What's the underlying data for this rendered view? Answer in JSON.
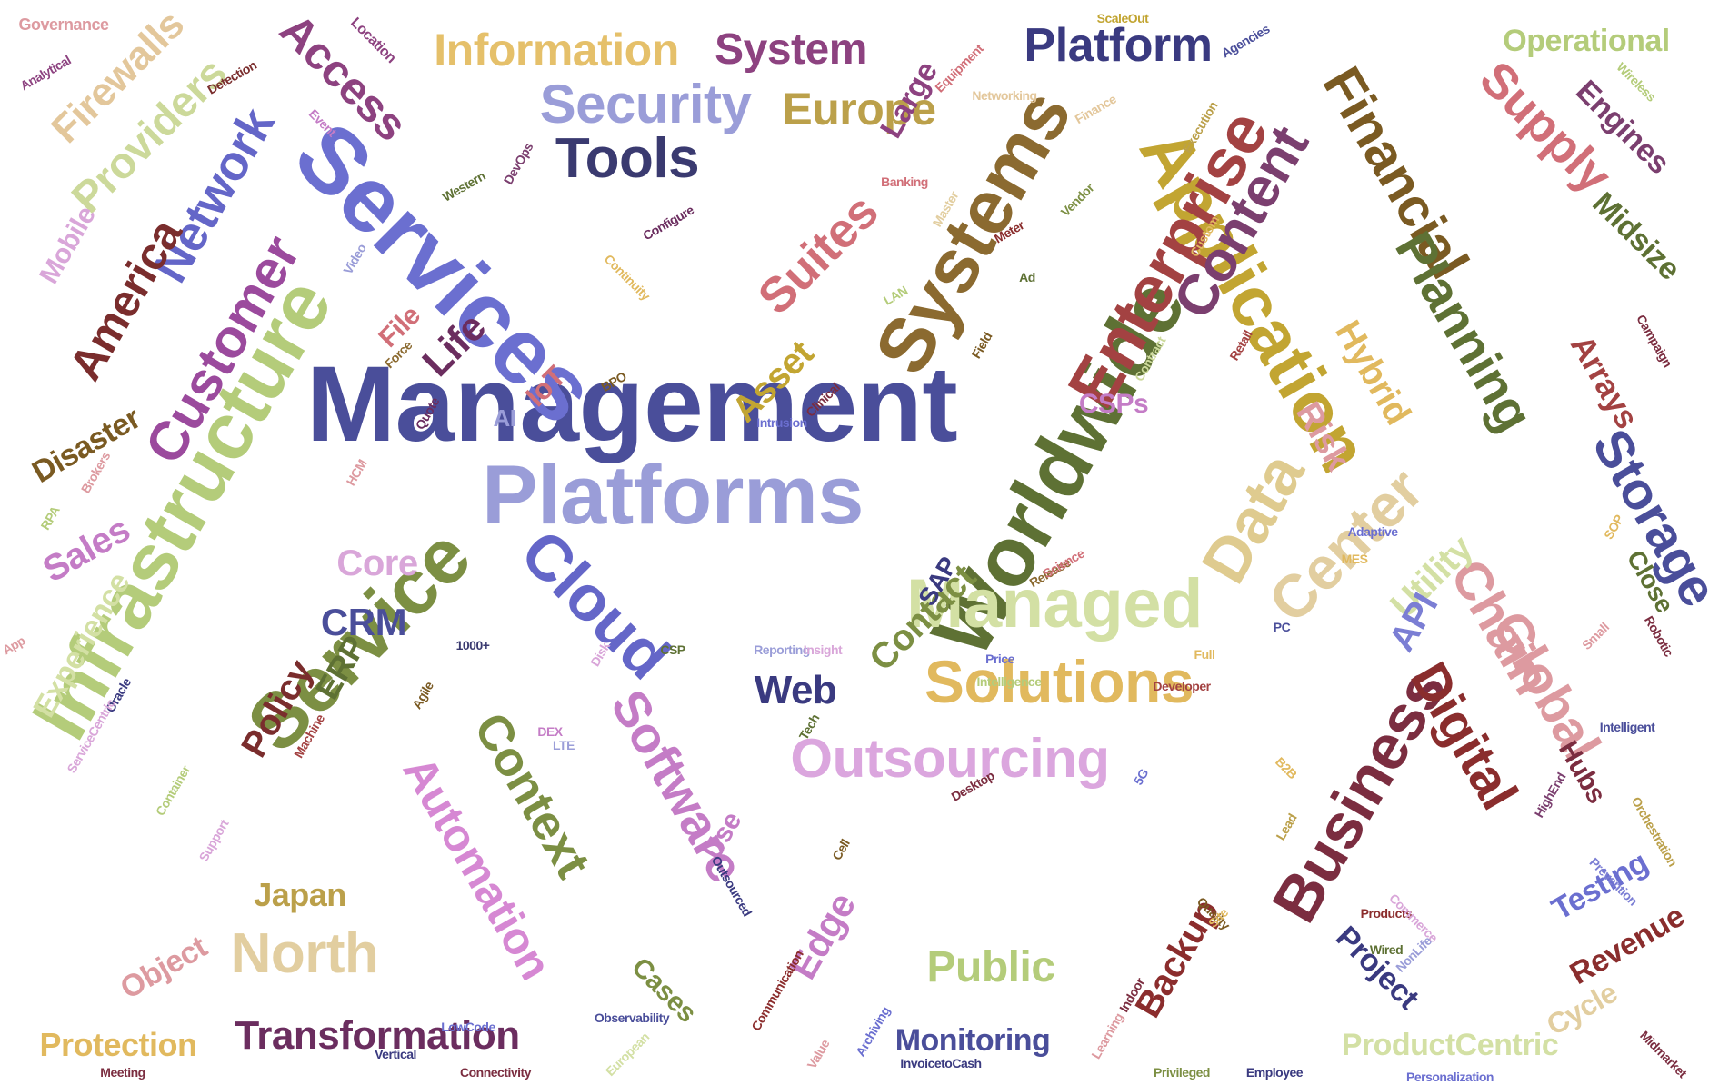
{
  "words": [
    {
      "text": "Management",
      "color": "#4a4e9a"
    },
    {
      "text": "Services",
      "color": "#6b6fd0"
    },
    {
      "text": "Platforms",
      "color": "#9a9dd8"
    },
    {
      "text": "Infrastructure",
      "color": "#b4cc7a"
    },
    {
      "text": "Worldwide",
      "color": "#5e7134"
    },
    {
      "text": "Service",
      "color": "#7c8f43"
    },
    {
      "text": "Cloud",
      "color": "#6466c8"
    },
    {
      "text": "Managed",
      "color": "#d3e0a4"
    },
    {
      "text": "Solutions",
      "color": "#e1b95e"
    },
    {
      "text": "Outsourcing",
      "color": "#dba6de"
    },
    {
      "text": "Systems",
      "color": "#8b6a30"
    },
    {
      "text": "Application",
      "color": "#c2a532"
    },
    {
      "text": "Enterprise",
      "color": "#a34242"
    },
    {
      "text": "Data",
      "color": "#dfcb8f"
    },
    {
      "text": "Center",
      "color": "#e2cea0"
    },
    {
      "text": "Customer",
      "color": "#9b4a9d"
    },
    {
      "text": "Network",
      "color": "#6466c8"
    },
    {
      "text": "Security",
      "color": "#9a9dd8"
    },
    {
      "text": "Tools",
      "color": "#3a3a70"
    },
    {
      "text": "Content",
      "color": "#7b3f6f"
    },
    {
      "text": "Financial",
      "color": "#7a5a22"
    },
    {
      "text": "Planning",
      "color": "#5e7134"
    },
    {
      "text": "Storage",
      "color": "#4a4e9a"
    },
    {
      "text": "Business",
      "color": "#7b2d40"
    },
    {
      "text": "Chain",
      "color": "#dd9aa0"
    },
    {
      "text": "Global",
      "color": "#dd9aa0"
    },
    {
      "text": "Digital",
      "color": "#8a2d2d"
    },
    {
      "text": "Software",
      "color": "#c47cc6"
    },
    {
      "text": "Context",
      "color": "#7c8f43"
    },
    {
      "text": "Automation",
      "color": "#d688d3"
    },
    {
      "text": "Platform",
      "color": "#3a3a80"
    },
    {
      "text": "Supply",
      "color": "#d16f78"
    },
    {
      "text": "Suites",
      "color": "#d16f78"
    },
    {
      "text": "Europe",
      "color": "#bba04a"
    },
    {
      "text": "Information",
      "color": "#e5c06a"
    },
    {
      "text": "System",
      "color": "#8d4280"
    },
    {
      "text": "Access",
      "color": "#8d4280"
    },
    {
      "text": "Providers",
      "color": "#ccd99a"
    },
    {
      "text": "America",
      "color": "#7a2d2d"
    },
    {
      "text": "Firewalls",
      "color": "#e3c79b"
    },
    {
      "text": "Public",
      "color": "#b4cc7a"
    },
    {
      "text": "North",
      "color": "#e2cea0"
    },
    {
      "text": "Transformation",
      "color": "#6b2d5f"
    },
    {
      "text": "Monitoring",
      "color": "#4a4e9a"
    },
    {
      "text": "ProductCentric",
      "color": "#d3e0a4"
    },
    {
      "text": "Operational",
      "color": "#b4cc7a"
    },
    {
      "text": "Engines",
      "color": "#7b3f6f"
    },
    {
      "text": "Midsize",
      "color": "#5e7134"
    },
    {
      "text": "Arrays",
      "color": "#a34242"
    },
    {
      "text": "Hybrid",
      "color": "#e1b95e"
    },
    {
      "text": "Risk",
      "color": "#dd9aa0"
    },
    {
      "text": "Utility",
      "color": "#d3e0a4"
    },
    {
      "text": "API",
      "color": "#7b7ed4"
    },
    {
      "text": "Contact",
      "color": "#7c8f43"
    },
    {
      "text": "Web",
      "color": "#3a3a80"
    },
    {
      "text": "CRM",
      "color": "#4a4e9a"
    },
    {
      "text": "Core",
      "color": "#d9a6d9"
    },
    {
      "text": "ERP",
      "color": "#5e7134"
    },
    {
      "text": "Policy",
      "color": "#7a2d2d"
    },
    {
      "text": "Sales",
      "color": "#c47cc6"
    },
    {
      "text": "Experience",
      "color": "#d3e0a4"
    },
    {
      "text": "Disaster",
      "color": "#7a5a22"
    },
    {
      "text": "Life",
      "color": "#6b2d5f"
    },
    {
      "text": "Asset",
      "color": "#c2a532"
    },
    {
      "text": "Large",
      "color": "#8d4280"
    },
    {
      "text": "Mobile",
      "color": "#d9a6d9"
    },
    {
      "text": "Edge",
      "color": "#c47cc6"
    },
    {
      "text": "Backup",
      "color": "#8b2d2d"
    },
    {
      "text": "Project",
      "color": "#3a3a80"
    },
    {
      "text": "Testing",
      "color": "#6b6fd0"
    },
    {
      "text": "Revenue",
      "color": "#8a2d2d"
    },
    {
      "text": "Cycle",
      "color": "#e2cea0"
    },
    {
      "text": "Hubs",
      "color": "#7b2d40"
    },
    {
      "text": "Close",
      "color": "#5e7134"
    },
    {
      "text": "Object",
      "color": "#dd9aa0"
    },
    {
      "text": "Protection",
      "color": "#e1b95e"
    },
    {
      "text": "Japan",
      "color": "#bba04a"
    },
    {
      "text": "Cases",
      "color": "#7c8f43"
    },
    {
      "text": "Use",
      "color": "#c47cc6"
    },
    {
      "text": "File",
      "color": "#d16f78"
    },
    {
      "text": "IoT",
      "color": "#d16f78"
    },
    {
      "text": "AI",
      "color": "#9a9dd8"
    },
    {
      "text": "CSPs",
      "color": "#c47cc6"
    },
    {
      "text": "SAP",
      "color": "#3a3a80"
    },
    {
      "text": "Governance",
      "color": "#dd9aa0"
    },
    {
      "text": "Analytical",
      "color": "#8d4280"
    },
    {
      "text": "Detection",
      "color": "#7a2d2d"
    },
    {
      "text": "Location",
      "color": "#8d4280"
    },
    {
      "text": "Event",
      "color": "#c47cc6"
    },
    {
      "text": "Western",
      "color": "#5e7134"
    },
    {
      "text": "DevOps",
      "color": "#7b3f6f"
    },
    {
      "text": "Configure",
      "color": "#6b2d5f"
    },
    {
      "text": "Continuity",
      "color": "#e1b95e"
    },
    {
      "text": "Video",
      "color": "#9a9dd8"
    },
    {
      "text": "Banking",
      "color": "#d16f78"
    },
    {
      "text": "Master",
      "color": "#e2cea0"
    },
    {
      "text": "Meter",
      "color": "#8a2d2d"
    },
    {
      "text": "Vendor",
      "color": "#7c8f43"
    },
    {
      "text": "Custom",
      "color": "#e1b95e"
    },
    {
      "text": "Ad",
      "color": "#5e7134"
    },
    {
      "text": "LAN",
      "color": "#b4cc7a"
    },
    {
      "text": "Field",
      "color": "#7a5a22"
    },
    {
      "text": "Contract",
      "color": "#ccd99a"
    },
    {
      "text": "Retail",
      "color": "#a34242"
    },
    {
      "text": "BPO",
      "color": "#7a5a22"
    },
    {
      "text": "Clinical",
      "color": "#7b2d40"
    },
    {
      "text": "Intrusion",
      "color": "#6b6fd0"
    },
    {
      "text": "Quote",
      "color": "#6b2d5f"
    },
    {
      "text": "Force",
      "color": "#8b6a30"
    },
    {
      "text": "ScaleOut",
      "color": "#c2a532"
    },
    {
      "text": "Agencies",
      "color": "#4a4e9a"
    },
    {
      "text": "Equipment",
      "color": "#d16f78"
    },
    {
      "text": "Networking",
      "color": "#e3c79b"
    },
    {
      "text": "Finance",
      "color": "#e3c79b"
    },
    {
      "text": "Execution",
      "color": "#bba04a"
    },
    {
      "text": "Wireless",
      "color": "#b4cc7a"
    },
    {
      "text": "Campaign",
      "color": "#7b2d40"
    },
    {
      "text": "Robotic",
      "color": "#7b2d40"
    },
    {
      "text": "Intelligent",
      "color": "#4a4e9a"
    },
    {
      "text": "Orchestration",
      "color": "#bba04a"
    },
    {
      "text": "SOP",
      "color": "#e1b95e"
    },
    {
      "text": "Small",
      "color": "#dd9aa0"
    },
    {
      "text": "Prevention",
      "color": "#7b7ed4"
    },
    {
      "text": "HighEnd",
      "color": "#7b3f6f"
    },
    {
      "text": "Adaptive",
      "color": "#6b6fd0"
    },
    {
      "text": "MES",
      "color": "#e1b95e"
    },
    {
      "text": "PC",
      "color": "#4a4e9a"
    },
    {
      "text": "Full",
      "color": "#e1b95e"
    },
    {
      "text": "Developer",
      "color": "#a34242"
    },
    {
      "text": "Price",
      "color": "#6b6fd0"
    },
    {
      "text": "Intelligence",
      "color": "#b4cc7a"
    },
    {
      "text": "Release",
      "color": "#8b6a30"
    },
    {
      "text": "Science",
      "color": "#d16f78"
    },
    {
      "text": "5G",
      "color": "#6b6fd0"
    },
    {
      "text": "Lead",
      "color": "#bba04a"
    },
    {
      "text": "B2B",
      "color": "#e1b95e"
    },
    {
      "text": "Quality",
      "color": "#7a5a22"
    },
    {
      "text": "Site",
      "color": "#e1b95e"
    },
    {
      "text": "Wired",
      "color": "#5e7134"
    },
    {
      "text": "Products",
      "color": "#8b2d2d"
    },
    {
      "text": "Commerce",
      "color": "#d9a6d9"
    },
    {
      "text": "NonLife",
      "color": "#9a9dd8"
    },
    {
      "text": "Personalization",
      "color": "#6b6fd0"
    },
    {
      "text": "Midmarket",
      "color": "#7b2d40"
    },
    {
      "text": "Employee",
      "color": "#3a3a80"
    },
    {
      "text": "Privileged",
      "color": "#7c8f43"
    },
    {
      "text": "Learning",
      "color": "#dd9aa0"
    },
    {
      "text": "Indoor",
      "color": "#7b2d40"
    },
    {
      "text": "Archiving",
      "color": "#6b6fd0"
    },
    {
      "text": "Value",
      "color": "#dd9aa0"
    },
    {
      "text": "Communication",
      "color": "#8b2d2d"
    },
    {
      "text": "InvoicetoCash",
      "color": "#3a3a80"
    },
    {
      "text": "Observability",
      "color": "#4a4e9a"
    },
    {
      "text": "European",
      "color": "#d3e0a4"
    },
    {
      "text": "Connectivity",
      "color": "#7b2d40"
    },
    {
      "text": "LowCode",
      "color": "#6b6fd0"
    },
    {
      "text": "Vertical",
      "color": "#3a3a80"
    },
    {
      "text": "Meeting",
      "color": "#7b2d40"
    },
    {
      "text": "Outsourced",
      "color": "#3a3a80"
    },
    {
      "text": "Cell",
      "color": "#7a5a22"
    },
    {
      "text": "Desktop",
      "color": "#7b2d40"
    },
    {
      "text": "DEX",
      "color": "#c47cc6"
    },
    {
      "text": "LTE",
      "color": "#9a9dd8"
    },
    {
      "text": "Tech",
      "color": "#5e7134"
    },
    {
      "text": "Reporting",
      "color": "#9a9dd8"
    },
    {
      "text": "Insight",
      "color": "#d9a6d9"
    },
    {
      "text": "CSP",
      "color": "#5e7134"
    },
    {
      "text": "Disk",
      "color": "#d9a6d9"
    },
    {
      "text": "1000+",
      "color": "#3a3a70"
    },
    {
      "text": "Agile",
      "color": "#7a5a22"
    },
    {
      "text": "Oracle",
      "color": "#3a3a80"
    },
    {
      "text": "Machine",
      "color": "#a34242"
    },
    {
      "text": "ServiceCentric",
      "color": "#d9a6d9"
    },
    {
      "text": "App",
      "color": "#dd9aa0"
    },
    {
      "text": "Container",
      "color": "#b4cc7a"
    },
    {
      "text": "Support",
      "color": "#d9a6d9"
    },
    {
      "text": "HCM",
      "color": "#dd9aa0"
    },
    {
      "text": "Brokers",
      "color": "#dd9aa0"
    },
    {
      "text": "RPA",
      "color": "#b4cc7a"
    }
  ]
}
